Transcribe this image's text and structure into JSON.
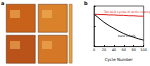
{
  "chart_data": {
    "type": "line",
    "panel_labels": [
      "a",
      "b"
    ],
    "x_label": "Cycle Number",
    "x": [
      0,
      10,
      20,
      30,
      40,
      50,
      60,
      70,
      80,
      90,
      100
    ],
    "xlim": [
      0,
      100
    ],
    "xticks": [
      0,
      20,
      40,
      60,
      80,
      100
    ],
    "ylim": [
      0,
      1
    ],
    "yticks": [
      0,
      0.5,
      1
    ],
    "tick_labels": "x",
    "grid": false,
    "series": [
      {
        "name": "Ten ALD cycles of Al₂O₃ coating",
        "color": "#e0221c",
        "values": [
          0.8,
          0.79,
          0.79,
          0.78,
          0.78,
          0.77,
          0.77,
          0.76,
          0.76,
          0.75,
          0.75
        ]
      },
      {
        "name": "bare LiCoO₂",
        "color": "#111111",
        "values": [
          0.8,
          0.7,
          0.6,
          0.52,
          0.45,
          0.38,
          0.32,
          0.27,
          0.23,
          0.19,
          0.16
        ]
      }
    ]
  }
}
